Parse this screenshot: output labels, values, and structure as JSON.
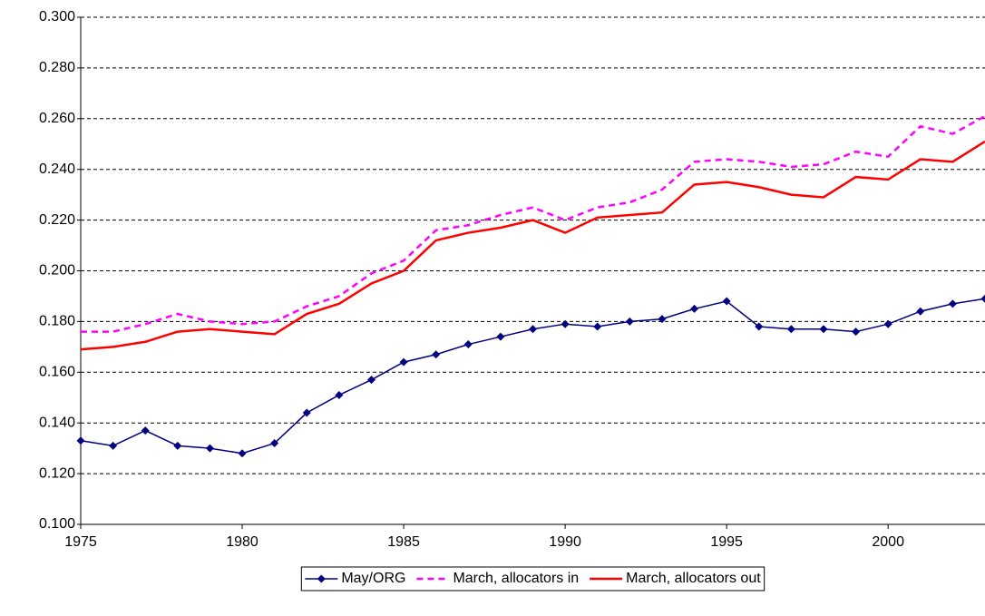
{
  "chart_data": {
    "type": "line",
    "x": [
      1975,
      1976,
      1977,
      1978,
      1979,
      1980,
      1981,
      1982,
      1983,
      1984,
      1985,
      1986,
      1987,
      1988,
      1989,
      1990,
      1991,
      1992,
      1993,
      1994,
      1995,
      1996,
      1997,
      1998,
      1999,
      2000,
      2001,
      2002,
      2003
    ],
    "series": [
      {
        "name": "May/ORG",
        "color": "#000080",
        "marker": "diamond",
        "dashed": false,
        "values": [
          0.133,
          0.131,
          0.137,
          0.131,
          0.13,
          0.128,
          0.132,
          0.144,
          0.151,
          0.157,
          0.164,
          0.167,
          0.171,
          0.174,
          0.177,
          0.179,
          0.178,
          0.18,
          0.181,
          0.185,
          0.188,
          0.178,
          0.177,
          0.177,
          0.176,
          0.179,
          0.184,
          0.187,
          0.189
        ]
      },
      {
        "name": "March, allocators in",
        "color": "#ff00ff",
        "marker": "none",
        "dashed": true,
        "values": [
          0.176,
          0.176,
          0.179,
          0.183,
          0.18,
          0.179,
          0.18,
          0.186,
          0.19,
          0.199,
          0.204,
          0.216,
          0.218,
          0.222,
          0.225,
          0.22,
          0.225,
          0.227,
          0.232,
          0.243,
          0.244,
          0.243,
          0.241,
          0.242,
          0.247,
          0.245,
          0.257,
          0.254,
          0.261
        ]
      },
      {
        "name": "March, allocators out",
        "color": "#ff0000",
        "marker": "none",
        "dashed": false,
        "values": [
          0.169,
          0.17,
          0.172,
          0.176,
          0.177,
          0.176,
          0.175,
          0.183,
          0.187,
          0.195,
          0.2,
          0.212,
          0.215,
          0.217,
          0.22,
          0.215,
          0.221,
          0.222,
          0.223,
          0.234,
          0.235,
          0.233,
          0.23,
          0.229,
          0.237,
          0.236,
          0.244,
          0.243,
          0.251
        ]
      }
    ],
    "xlim": [
      1975,
      2003
    ],
    "xticks": [
      1975,
      1980,
      1985,
      1990,
      1995,
      2000
    ],
    "ylim": [
      0.1,
      0.3
    ],
    "yticks": [
      {
        "value": 0.1,
        "label": "0.100"
      },
      {
        "value": 0.12,
        "label": "0.120"
      },
      {
        "value": 0.14,
        "label": "0.140"
      },
      {
        "value": 0.16,
        "label": "0.160"
      },
      {
        "value": 0.18,
        "label": "0.180"
      },
      {
        "value": 0.2,
        "label": "0.200"
      },
      {
        "value": 0.22,
        "label": "0.220"
      },
      {
        "value": 0.24,
        "label": "0.240"
      },
      {
        "value": 0.26,
        "label": "0.260"
      },
      {
        "value": 0.28,
        "label": "0.280"
      },
      {
        "value": 0.3,
        "label": "0.300"
      }
    ],
    "grid": true,
    "legend": "bottom"
  }
}
